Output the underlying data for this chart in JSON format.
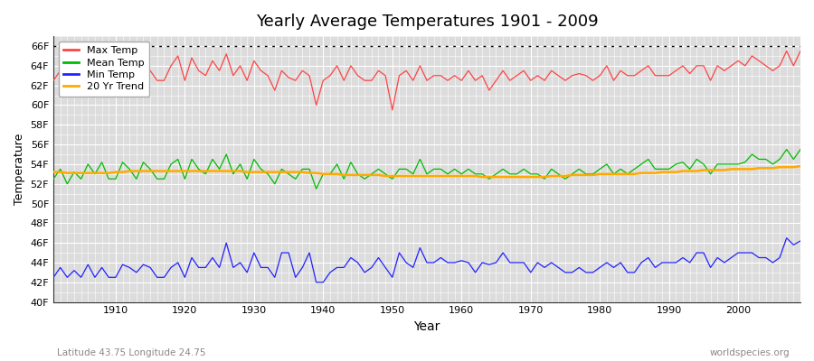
{
  "title": "Yearly Average Temperatures 1901 - 2009",
  "xlabel": "Year",
  "ylabel": "Temperature",
  "footnote_left": "Latitude 43.75 Longitude 24.75",
  "footnote_right": "worldspecies.org",
  "ylim": [
    40,
    67
  ],
  "yticks": [
    40,
    42,
    44,
    46,
    48,
    50,
    52,
    54,
    56,
    58,
    60,
    62,
    64,
    66
  ],
  "ytick_labels": [
    "40F",
    "42F",
    "44F",
    "46F",
    "48F",
    "50F",
    "52F",
    "54F",
    "56F",
    "58F",
    "60F",
    "62F",
    "64F",
    "66F"
  ],
  "xlim": [
    1901,
    2009
  ],
  "xticks": [
    1910,
    1920,
    1930,
    1940,
    1950,
    1960,
    1970,
    1980,
    1990,
    2000
  ],
  "hline_y": 66,
  "fig_bg_color": "#ffffff",
  "bg_color": "#dcdcdc",
  "grid_color": "#ffffff",
  "max_temp_color": "#ff4444",
  "mean_temp_color": "#00bb00",
  "min_temp_color": "#2222ff",
  "trend_color": "#ffaa00",
  "legend_labels": [
    "Max Temp",
    "Mean Temp",
    "Min Temp",
    "20 Yr Trend"
  ],
  "years": [
    1901,
    1902,
    1903,
    1904,
    1905,
    1906,
    1907,
    1908,
    1909,
    1910,
    1911,
    1912,
    1913,
    1914,
    1915,
    1916,
    1917,
    1918,
    1919,
    1920,
    1921,
    1922,
    1923,
    1924,
    1925,
    1926,
    1927,
    1928,
    1929,
    1930,
    1931,
    1932,
    1933,
    1934,
    1935,
    1936,
    1937,
    1938,
    1939,
    1940,
    1941,
    1942,
    1943,
    1944,
    1945,
    1946,
    1947,
    1948,
    1949,
    1950,
    1951,
    1952,
    1953,
    1954,
    1955,
    1956,
    1957,
    1958,
    1959,
    1960,
    1961,
    1962,
    1963,
    1964,
    1965,
    1966,
    1967,
    1968,
    1969,
    1970,
    1971,
    1972,
    1973,
    1974,
    1975,
    1976,
    1977,
    1978,
    1979,
    1980,
    1981,
    1982,
    1983,
    1984,
    1985,
    1986,
    1987,
    1988,
    1989,
    1990,
    1991,
    1992,
    1993,
    1994,
    1995,
    1996,
    1997,
    1998,
    1999,
    2000,
    2001,
    2002,
    2003,
    2004,
    2005,
    2006,
    2007,
    2008,
    2009
  ],
  "max_temp": [
    62.5,
    63.5,
    62.2,
    63.5,
    62.0,
    64.5,
    63.2,
    64.8,
    62.0,
    62.5,
    64.5,
    63.8,
    62.5,
    64.8,
    63.5,
    62.5,
    62.5,
    64.0,
    65.0,
    62.5,
    64.8,
    63.5,
    63.0,
    64.5,
    63.5,
    65.2,
    63.0,
    64.0,
    62.5,
    64.5,
    63.5,
    63.0,
    61.5,
    63.5,
    62.8,
    62.5,
    63.5,
    63.0,
    60.0,
    62.5,
    63.0,
    64.0,
    62.5,
    64.0,
    63.0,
    62.5,
    62.5,
    63.5,
    63.0,
    59.5,
    63.0,
    63.5,
    62.5,
    64.0,
    62.5,
    63.0,
    63.0,
    62.5,
    63.0,
    62.5,
    63.5,
    62.5,
    63.0,
    61.5,
    62.5,
    63.5,
    62.5,
    63.0,
    63.5,
    62.5,
    63.0,
    62.5,
    63.5,
    63.0,
    62.5,
    63.0,
    63.2,
    63.0,
    62.5,
    63.0,
    64.0,
    62.5,
    63.5,
    63.0,
    63.0,
    63.5,
    64.0,
    63.0,
    63.0,
    63.0,
    63.5,
    64.0,
    63.2,
    64.0,
    64.0,
    62.5,
    64.0,
    63.5,
    64.0,
    64.5,
    64.0,
    65.0,
    64.5,
    64.0,
    63.5,
    64.0,
    65.5,
    64.0,
    65.5
  ],
  "mean_temp": [
    52.5,
    53.5,
    52.0,
    53.2,
    52.5,
    54.0,
    53.0,
    54.2,
    52.5,
    52.5,
    54.2,
    53.5,
    52.5,
    54.2,
    53.5,
    52.5,
    52.5,
    54.0,
    54.5,
    52.5,
    54.5,
    53.5,
    53.0,
    54.5,
    53.5,
    55.0,
    53.0,
    54.0,
    52.5,
    54.5,
    53.5,
    53.0,
    52.0,
    53.5,
    53.0,
    52.5,
    53.5,
    53.5,
    51.5,
    53.0,
    53.0,
    54.0,
    52.5,
    54.2,
    53.0,
    52.5,
    53.0,
    53.5,
    53.0,
    52.5,
    53.5,
    53.5,
    53.0,
    54.5,
    53.0,
    53.5,
    53.5,
    53.0,
    53.5,
    53.0,
    53.5,
    53.0,
    53.0,
    52.5,
    53.0,
    53.5,
    53.0,
    53.0,
    53.5,
    53.0,
    53.0,
    52.5,
    53.5,
    53.0,
    52.5,
    53.0,
    53.5,
    53.0,
    53.0,
    53.5,
    54.0,
    53.0,
    53.5,
    53.0,
    53.5,
    54.0,
    54.5,
    53.5,
    53.5,
    53.5,
    54.0,
    54.2,
    53.5,
    54.5,
    54.0,
    53.0,
    54.0,
    54.0,
    54.0,
    54.0,
    54.2,
    55.0,
    54.5,
    54.5,
    54.0,
    54.5,
    55.5,
    54.5,
    55.5
  ],
  "min_temp": [
    42.5,
    43.5,
    42.5,
    43.2,
    42.5,
    43.8,
    42.5,
    43.5,
    42.5,
    42.5,
    43.8,
    43.5,
    43.0,
    43.8,
    43.5,
    42.5,
    42.5,
    43.5,
    44.0,
    42.5,
    44.5,
    43.5,
    43.5,
    44.5,
    43.5,
    46.0,
    43.5,
    44.0,
    43.0,
    45.0,
    43.5,
    43.5,
    42.5,
    45.0,
    45.0,
    42.5,
    43.5,
    45.0,
    42.0,
    42.0,
    43.0,
    43.5,
    43.5,
    44.5,
    44.0,
    43.0,
    43.5,
    44.5,
    43.5,
    42.5,
    45.0,
    44.0,
    43.5,
    45.5,
    44.0,
    44.0,
    44.5,
    44.0,
    44.0,
    44.2,
    44.0,
    43.0,
    44.0,
    43.8,
    44.0,
    45.0,
    44.0,
    44.0,
    44.0,
    43.0,
    44.0,
    43.5,
    44.0,
    43.5,
    43.0,
    43.0,
    43.5,
    43.0,
    43.0,
    43.5,
    44.0,
    43.5,
    44.0,
    43.0,
    43.0,
    44.0,
    44.5,
    43.5,
    44.0,
    44.0,
    44.0,
    44.5,
    44.0,
    45.0,
    45.0,
    43.5,
    44.5,
    44.0,
    44.5,
    45.0,
    45.0,
    45.0,
    44.5,
    44.5,
    44.0,
    44.5,
    46.5,
    45.8,
    46.2
  ],
  "trend": [
    53.2,
    53.2,
    53.1,
    53.1,
    53.1,
    53.1,
    53.1,
    53.1,
    53.1,
    53.2,
    53.2,
    53.3,
    53.3,
    53.3,
    53.3,
    53.3,
    53.3,
    53.3,
    53.3,
    53.3,
    53.3,
    53.3,
    53.3,
    53.3,
    53.3,
    53.3,
    53.3,
    53.3,
    53.2,
    53.2,
    53.2,
    53.2,
    53.2,
    53.2,
    53.2,
    53.2,
    53.2,
    53.1,
    53.1,
    53.0,
    53.0,
    53.0,
    52.9,
    52.9,
    52.9,
    52.9,
    52.9,
    52.9,
    52.8,
    52.8,
    52.8,
    52.8,
    52.8,
    52.8,
    52.8,
    52.8,
    52.8,
    52.8,
    52.8,
    52.8,
    52.8,
    52.8,
    52.7,
    52.7,
    52.7,
    52.7,
    52.7,
    52.7,
    52.7,
    52.7,
    52.7,
    52.7,
    52.8,
    52.8,
    52.8,
    52.9,
    52.9,
    52.9,
    52.9,
    53.0,
    53.0,
    53.0,
    53.0,
    53.0,
    53.0,
    53.1,
    53.1,
    53.1,
    53.2,
    53.2,
    53.2,
    53.3,
    53.3,
    53.3,
    53.4,
    53.4,
    53.4,
    53.4,
    53.5,
    53.5,
    53.5,
    53.5,
    53.6,
    53.6,
    53.6,
    53.7,
    53.7,
    53.7,
    53.8
  ]
}
